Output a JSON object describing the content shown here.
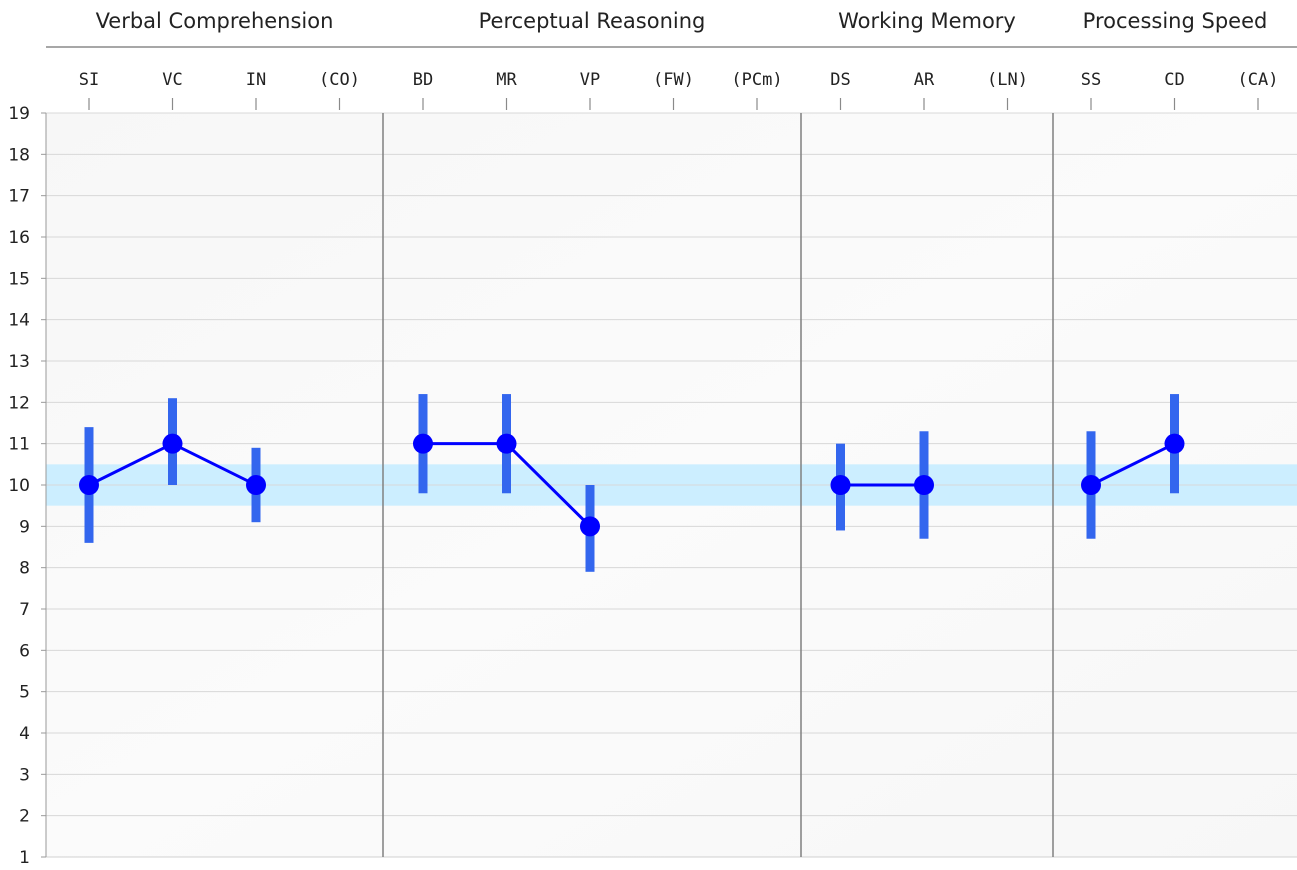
{
  "chart_data": {
    "type": "line",
    "title": "",
    "xlabel": "",
    "ylabel": "",
    "ylim": [
      1,
      19
    ],
    "y_ticks": [
      1,
      2,
      3,
      4,
      5,
      6,
      7,
      8,
      9,
      10,
      11,
      12,
      13,
      14,
      15,
      16,
      17,
      18,
      19
    ],
    "grid": true,
    "average_band": [
      9.5,
      10.5
    ],
    "colors": {
      "line": "#0000ff",
      "marker": "#0000ff",
      "error_bar": "#3366ee",
      "band": "#cceeff",
      "grid": "#d8d8d8",
      "divider": "#808080",
      "plot_bg": "#f9f9f9"
    },
    "groups": [
      {
        "name": "Verbal Comprehension",
        "subtests": [
          {
            "label": "SI",
            "score": 10,
            "ci": [
              8.6,
              11.4
            ]
          },
          {
            "label": "VC",
            "score": 11,
            "ci": [
              10.0,
              12.1
            ]
          },
          {
            "label": "IN",
            "score": 10,
            "ci": [
              9.1,
              10.9
            ]
          },
          {
            "label": "(CO)",
            "score": null,
            "ci": null
          }
        ]
      },
      {
        "name": "Perceptual Reasoning",
        "subtests": [
          {
            "label": "BD",
            "score": 11,
            "ci": [
              9.8,
              12.2
            ]
          },
          {
            "label": "MR",
            "score": 11,
            "ci": [
              9.8,
              12.2
            ]
          },
          {
            "label": "VP",
            "score": 9,
            "ci": [
              7.9,
              10.0
            ]
          },
          {
            "label": "(FW)",
            "score": null,
            "ci": null
          },
          {
            "label": "(PCm)",
            "score": null,
            "ci": null
          }
        ]
      },
      {
        "name": "Working Memory",
        "subtests": [
          {
            "label": "DS",
            "score": 10,
            "ci": [
              8.9,
              11.0
            ]
          },
          {
            "label": "AR",
            "score": 10,
            "ci": [
              8.7,
              11.3
            ]
          },
          {
            "label": "(LN)",
            "score": null,
            "ci": null
          }
        ]
      },
      {
        "name": "Processing Speed",
        "subtests": [
          {
            "label": "SS",
            "score": 10,
            "ci": [
              8.7,
              11.3
            ]
          },
          {
            "label": "CD",
            "score": 11,
            "ci": [
              9.8,
              12.2
            ]
          },
          {
            "label": "(CA)",
            "score": null,
            "ci": null
          }
        ]
      }
    ]
  }
}
